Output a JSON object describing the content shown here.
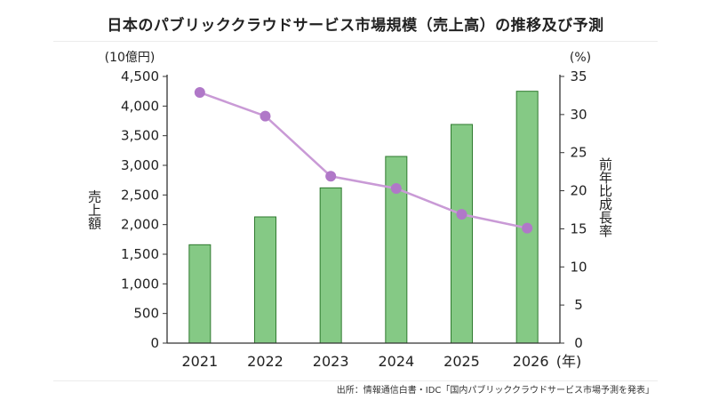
{
  "title": "日本のパブリッククラウドサービス市場規模（売上高）の推移及び予測",
  "source": "出所：情報通信白書・IDC「国内パブリッククラウドサービス市場予測を発表」",
  "colors": {
    "bar": "#85c985",
    "bar_stroke": "#2f7a2f",
    "line": "#c99ad6",
    "marker": "#b078c8"
  },
  "chart_data": {
    "type": "bar",
    "categories": [
      "2021",
      "2022",
      "2023",
      "2024",
      "2025",
      "2026"
    ],
    "x_unit": "(年)",
    "series": [
      {
        "type": "bar",
        "axis": "left",
        "values": [
          1660,
          2130,
          2620,
          3150,
          3690,
          4250
        ]
      },
      {
        "type": "line",
        "axis": "right",
        "values": [
          32.9,
          29.8,
          21.9,
          20.3,
          16.9,
          15.1
        ]
      }
    ],
    "y_left": {
      "label": "売上額",
      "unit": "(10億円)",
      "ylim": [
        0,
        4500
      ],
      "ticks": [
        "0",
        "500",
        "1,000",
        "1,500",
        "2,000",
        "2,500",
        "3,000",
        "3,500",
        "4,000",
        "4,500"
      ]
    },
    "y_right": {
      "label": "前年比成長率",
      "unit": "(%)",
      "ylim": [
        0,
        35
      ],
      "ticks": [
        "0",
        "5",
        "10",
        "15",
        "20",
        "25",
        "30",
        "35"
      ]
    },
    "grid": false
  }
}
